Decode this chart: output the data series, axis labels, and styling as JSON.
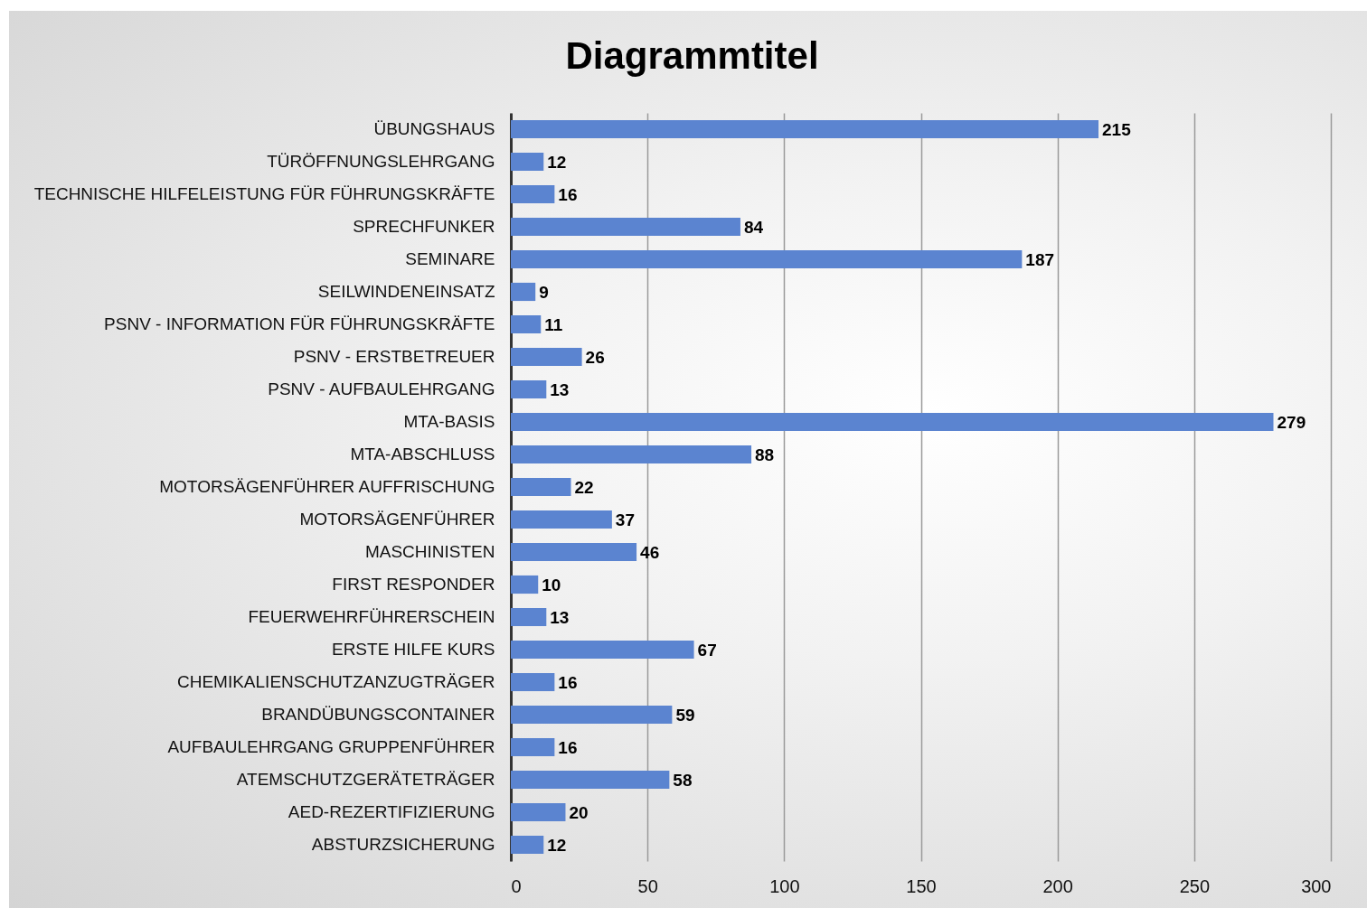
{
  "chart_data": {
    "type": "bar",
    "orientation": "horizontal",
    "title": "Diagrammtitel",
    "categories": [
      "ÜBUNGSHAUS",
      "TÜRÖFFNUNGSLEHRGANG",
      "TECHNISCHE HILFELEISTUNG FÜR FÜHRUNGSKRÄFTE",
      "SPRECHFUNKER",
      "SEMINARE",
      "SEILWINDENEINSATZ",
      "PSNV - INFORMATION FÜR FÜHRUNGSKRÄFTE",
      "PSNV - ERSTBETREUER",
      "PSNV - AUFBAULEHRGANG",
      "MTA-BASIS",
      "MTA-ABSCHLUSS",
      "MOTORSÄGENFÜHRER AUFFRISCHUNG",
      "MOTORSÄGENFÜHRER",
      "MASCHINISTEN",
      "FIRST RESPONDER",
      "FEUERWEHRFÜHRERSCHEIN",
      "ERSTE HILFE KURS",
      "CHEMIKALIENSCHUTZANZUGTRÄGER",
      "BRANDÜBUNGSCONTAINER",
      "AUFBAULEHRGANG GRUPPENFÜHRER",
      "ATEMSCHUTZGERÄTETRÄGER",
      "AED-REZERTIFIZIERUNG",
      "ABSTURZSICHERUNG"
    ],
    "values": [
      215,
      12,
      16,
      84,
      187,
      9,
      11,
      26,
      13,
      279,
      88,
      22,
      37,
      46,
      10,
      13,
      67,
      16,
      59,
      16,
      58,
      20,
      12
    ],
    "color": "#5b84d0",
    "xlim": [
      0,
      300
    ],
    "xticks": [
      0,
      50,
      100,
      150,
      200,
      250,
      300
    ],
    "grid": "x",
    "data_labels": true
  }
}
